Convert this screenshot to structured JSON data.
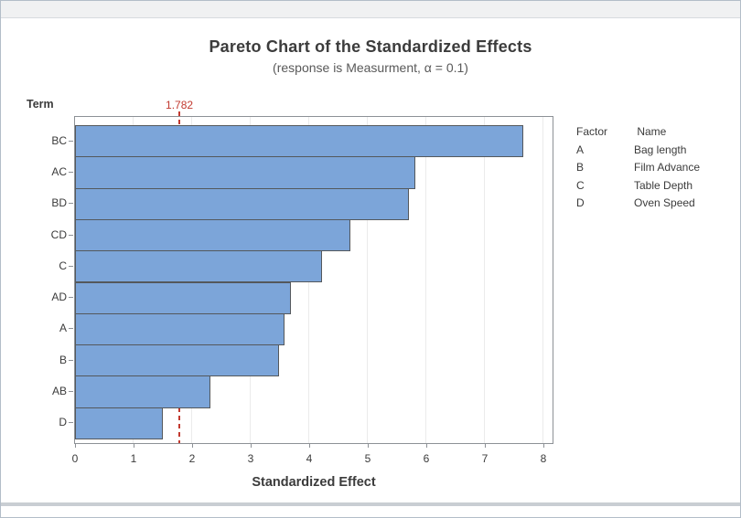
{
  "chart_data": {
    "type": "bar",
    "orientation": "horizontal",
    "title": "Pareto Chart of the Standardized Effects",
    "subtitle": "(response is Measurment, α = 0.1)",
    "xlabel": "Standardized Effect",
    "ylabel": "Term",
    "categories": [
      "BC",
      "AC",
      "BD",
      "CD",
      "C",
      "AD",
      "A",
      "B",
      "AB",
      "D"
    ],
    "values": [
      7.65,
      5.82,
      5.7,
      4.7,
      4.22,
      3.68,
      3.58,
      3.48,
      2.31,
      1.5
    ],
    "xlim": [
      0,
      8
    ],
    "xticks": [
      0,
      1,
      2,
      3,
      4,
      5,
      6,
      7,
      8
    ],
    "grid": "vertical-major",
    "legend_position": "right",
    "reference_line": {
      "value": 1.782,
      "label": "1.782"
    },
    "legend": {
      "col_headers": {
        "factor": "Factor",
        "name": "Name"
      },
      "rows": [
        {
          "factor": "A",
          "name": "Bag length"
        },
        {
          "factor": "B",
          "name": "Film Advance"
        },
        {
          "factor": "C",
          "name": "Table Depth"
        },
        {
          "factor": "D",
          "name": "Oven Speed"
        }
      ]
    },
    "colors": {
      "bar_fill": "#7CA5D9",
      "bar_border": "#54585C",
      "reference": "#C2392F",
      "grid": "#EBEBEB",
      "frame": "#8D9196",
      "text": "#3B3B3B",
      "subtitle_text": "#595959"
    }
  }
}
